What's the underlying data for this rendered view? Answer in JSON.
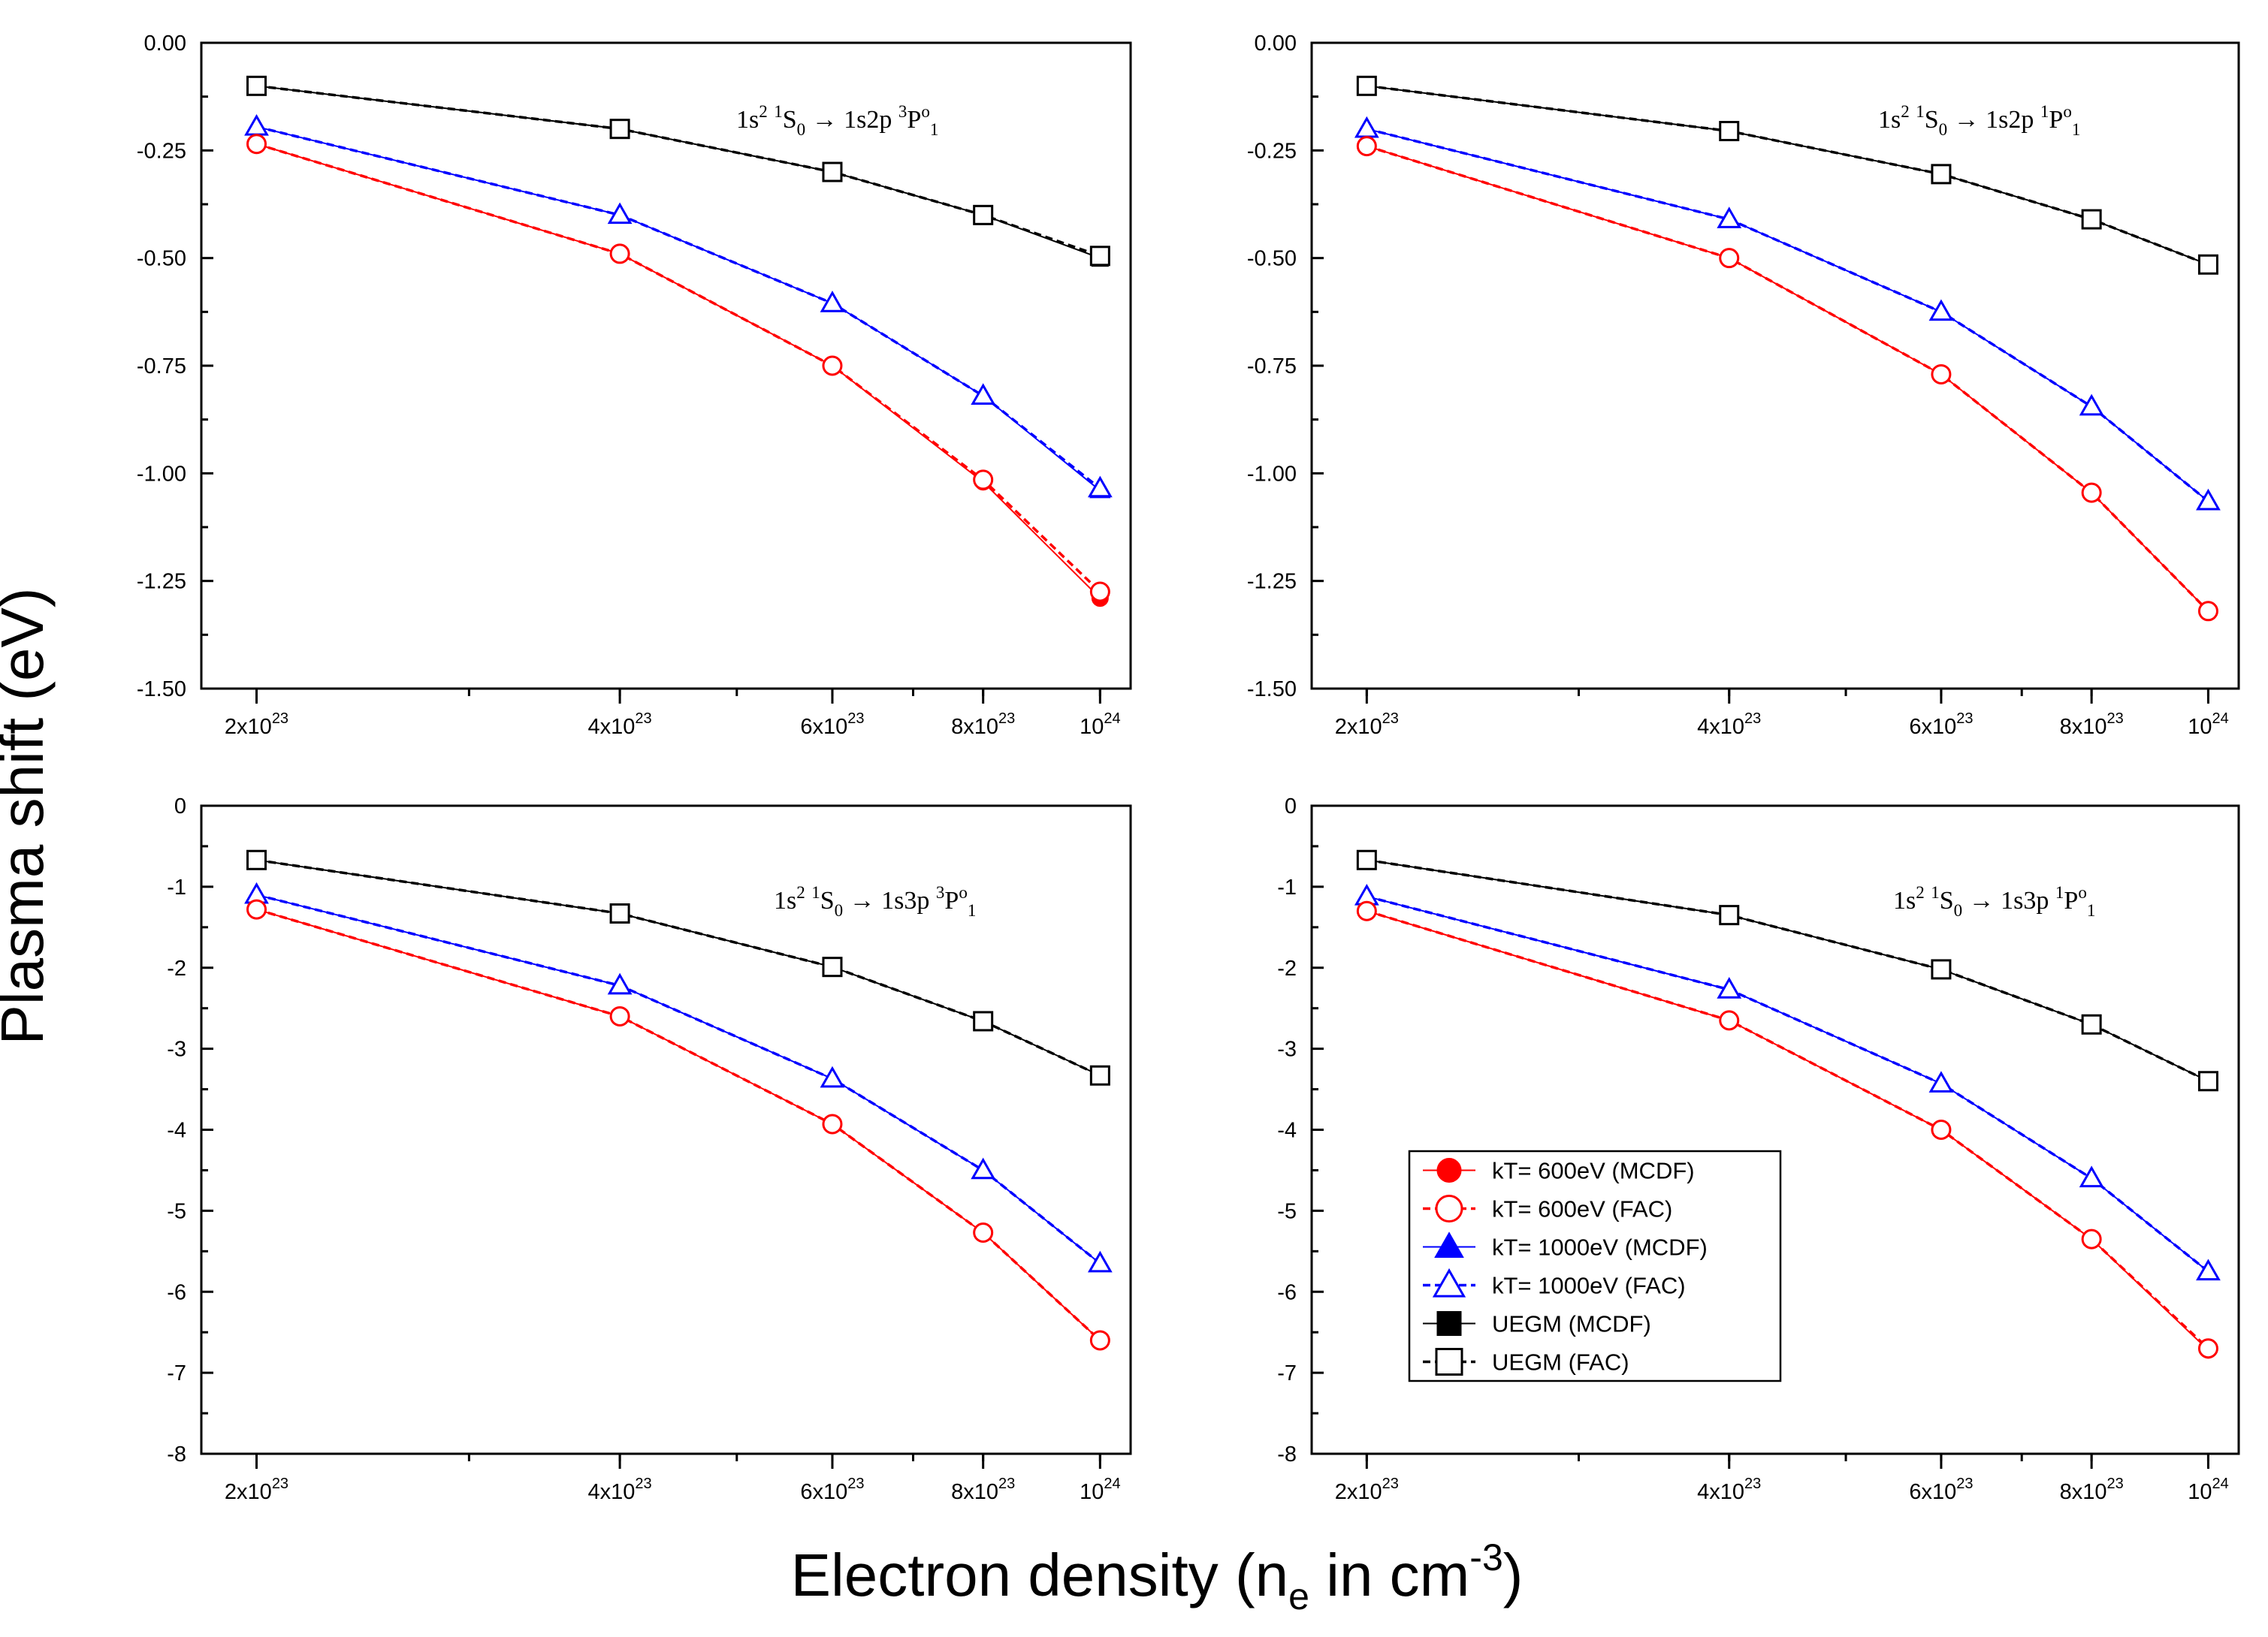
{
  "figure": {
    "ylabel": "Plasma shift (eV)",
    "xlabel": {
      "main": "Electron density (n",
      "sub": "e",
      "mid": " in cm",
      "sup": "-3",
      "end": ")"
    }
  },
  "legend": {
    "placement": "bottom-right panel, lower-left",
    "entries": [
      {
        "label": "kT= 600eV (MCDF)",
        "color": "#ff0000",
        "marker": "circle",
        "filled": true,
        "dash": false
      },
      {
        "label": "kT= 600eV (FAC)",
        "color": "#ff0000",
        "marker": "circle",
        "filled": false,
        "dash": true
      },
      {
        "label": "kT= 1000eV (MCDF)",
        "color": "#0000ff",
        "marker": "triangle",
        "filled": true,
        "dash": false
      },
      {
        "label": "kT= 1000eV (FAC)",
        "color": "#0000ff",
        "marker": "triangle",
        "filled": false,
        "dash": true
      },
      {
        "label": "UEGM (MCDF)",
        "color": "#000000",
        "marker": "square",
        "filled": true,
        "dash": false
      },
      {
        "label": "UEGM (FAC)",
        "color": "#000000",
        "marker": "square",
        "filled": false,
        "dash": true
      }
    ]
  },
  "chart_data": [
    {
      "type": "line",
      "annotation": {
        "parts": [
          {
            "t": "1s"
          },
          {
            "t": "2",
            "s": "sup"
          },
          {
            "t": " "
          },
          {
            "t": "1",
            "s": "sup"
          },
          {
            "t": "S"
          },
          {
            "t": "0",
            "s": "sub"
          },
          {
            "t": " → 1s2p "
          },
          {
            "t": "3",
            "s": "sup"
          },
          {
            "t": "P"
          },
          {
            "t": "o",
            "s": "sup"
          },
          {
            "t": "1",
            "s": "sub"
          }
        ]
      },
      "x_scale": "log",
      "xlim": [
        1.8e+23,
        1.06e+24
      ],
      "ylim": [
        -1.5,
        0
      ],
      "xticks": [
        {
          "value": 2e+23,
          "base": "2x10",
          "exp": "23"
        },
        {
          "value": 4e+23,
          "base": "4x10",
          "exp": "23"
        },
        {
          "value": 6e+23,
          "base": "6x10",
          "exp": "23"
        },
        {
          "value": 8e+23,
          "base": "8x10",
          "exp": "23"
        },
        {
          "value": 1e+24,
          "base": "10",
          "exp": "24"
        }
      ],
      "yticks": [
        {
          "value": 0,
          "label": "0.00"
        },
        {
          "value": -0.25,
          "label": "-0.25"
        },
        {
          "value": -0.5,
          "label": "-0.50"
        },
        {
          "value": -0.75,
          "label": "-0.75"
        },
        {
          "value": -1.0,
          "label": "-1.00"
        },
        {
          "value": -1.25,
          "label": "-1.25"
        },
        {
          "value": -1.5,
          "label": "-1.50"
        }
      ],
      "x": [
        2e+23,
        4e+23,
        6e+23,
        8e+23,
        1e+24
      ],
      "series": [
        {
          "name": "kT= 600eV (MCDF)",
          "values": [
            -0.235,
            -0.49,
            -0.75,
            -1.02,
            -1.29
          ]
        },
        {
          "name": "kT= 600eV (FAC)",
          "values": [
            -0.235,
            -0.49,
            -0.75,
            -1.015,
            -1.275
          ]
        },
        {
          "name": "kT= 1000eV (MCDF)",
          "values": [
            -0.195,
            -0.4,
            -0.605,
            -0.82,
            -1.04
          ]
        },
        {
          "name": "kT= 1000eV (FAC)",
          "values": [
            -0.195,
            -0.4,
            -0.605,
            -0.82,
            -1.035
          ]
        },
        {
          "name": "UEGM (MCDF)",
          "values": [
            -0.1,
            -0.2,
            -0.3,
            -0.4,
            -0.5
          ]
        },
        {
          "name": "UEGM (FAC)",
          "values": [
            -0.1,
            -0.2,
            -0.3,
            -0.4,
            -0.495
          ]
        }
      ]
    },
    {
      "type": "line",
      "annotation": {
        "parts": [
          {
            "t": "1s"
          },
          {
            "t": "2",
            "s": "sup"
          },
          {
            "t": " "
          },
          {
            "t": "1",
            "s": "sup"
          },
          {
            "t": "S"
          },
          {
            "t": "0",
            "s": "sub"
          },
          {
            "t": " → 1s2p "
          },
          {
            "t": "1",
            "s": "sup"
          },
          {
            "t": "P"
          },
          {
            "t": "o",
            "s": "sup"
          },
          {
            "t": "1",
            "s": "sub"
          }
        ]
      },
      "x_scale": "log",
      "xlim": [
        1.8e+23,
        1.06e+24
      ],
      "ylim": [
        -1.5,
        0
      ],
      "xticks": [
        {
          "value": 2e+23,
          "base": "2x10",
          "exp": "23"
        },
        {
          "value": 4e+23,
          "base": "4x10",
          "exp": "23"
        },
        {
          "value": 6e+23,
          "base": "6x10",
          "exp": "23"
        },
        {
          "value": 8e+23,
          "base": "8x10",
          "exp": "23"
        },
        {
          "value": 1e+24,
          "base": "10",
          "exp": "24"
        }
      ],
      "yticks": [
        {
          "value": 0,
          "label": "0.00"
        },
        {
          "value": -0.25,
          "label": "-0.25"
        },
        {
          "value": -0.5,
          "label": "-0.50"
        },
        {
          "value": -0.75,
          "label": "-0.75"
        },
        {
          "value": -1.0,
          "label": "-1.00"
        },
        {
          "value": -1.25,
          "label": "-1.25"
        },
        {
          "value": -1.5,
          "label": "-1.50"
        }
      ],
      "x": [
        2e+23,
        4e+23,
        6e+23,
        8e+23,
        1e+24
      ],
      "series": [
        {
          "name": "kT= 600eV (MCDF)",
          "values": [
            -0.24,
            -0.5,
            -0.77,
            -1.045,
            -1.32
          ]
        },
        {
          "name": "kT= 600eV (FAC)",
          "values": [
            -0.24,
            -0.5,
            -0.77,
            -1.045,
            -1.32
          ]
        },
        {
          "name": "kT= 1000eV (MCDF)",
          "values": [
            -0.2,
            -0.41,
            -0.625,
            -0.845,
            -1.065
          ]
        },
        {
          "name": "kT= 1000eV (FAC)",
          "values": [
            -0.2,
            -0.41,
            -0.625,
            -0.845,
            -1.065
          ]
        },
        {
          "name": "UEGM (MCDF)",
          "values": [
            -0.1,
            -0.205,
            -0.305,
            -0.41,
            -0.515
          ]
        },
        {
          "name": "UEGM (FAC)",
          "values": [
            -0.1,
            -0.205,
            -0.305,
            -0.41,
            -0.515
          ]
        }
      ]
    },
    {
      "type": "line",
      "annotation": {
        "parts": [
          {
            "t": "1s"
          },
          {
            "t": "2",
            "s": "sup"
          },
          {
            "t": " "
          },
          {
            "t": "1",
            "s": "sup"
          },
          {
            "t": "S"
          },
          {
            "t": "0",
            "s": "sub"
          },
          {
            "t": " → 1s3p "
          },
          {
            "t": "3",
            "s": "sup"
          },
          {
            "t": "P"
          },
          {
            "t": "o",
            "s": "sup"
          },
          {
            "t": "1",
            "s": "sub"
          }
        ]
      },
      "x_scale": "log",
      "xlim": [
        1.8e+23,
        1.06e+24
      ],
      "ylim": [
        -8,
        0
      ],
      "xticks": [
        {
          "value": 2e+23,
          "base": "2x10",
          "exp": "23"
        },
        {
          "value": 4e+23,
          "base": "4x10",
          "exp": "23"
        },
        {
          "value": 6e+23,
          "base": "6x10",
          "exp": "23"
        },
        {
          "value": 8e+23,
          "base": "8x10",
          "exp": "23"
        },
        {
          "value": 1e+24,
          "base": "10",
          "exp": "24"
        }
      ],
      "yticks": [
        {
          "value": 0,
          "label": "0"
        },
        {
          "value": -1,
          "label": "-1"
        },
        {
          "value": -2,
          "label": "-2"
        },
        {
          "value": -3,
          "label": "-3"
        },
        {
          "value": -4,
          "label": "-4"
        },
        {
          "value": -5,
          "label": "-5"
        },
        {
          "value": -6,
          "label": "-6"
        },
        {
          "value": -7,
          "label": "-7"
        },
        {
          "value": -8,
          "label": "-8"
        }
      ],
      "x": [
        2e+23,
        4e+23,
        6e+23,
        8e+23,
        1e+24
      ],
      "series": [
        {
          "name": "kT= 600eV (MCDF)",
          "values": [
            -1.28,
            -2.6,
            -3.93,
            -5.27,
            -6.6
          ]
        },
        {
          "name": "kT= 600eV (FAC)",
          "values": [
            -1.28,
            -2.6,
            -3.93,
            -5.27,
            -6.6
          ]
        },
        {
          "name": "kT= 1000eV (MCDF)",
          "values": [
            -1.1,
            -2.22,
            -3.37,
            -4.5,
            -5.65
          ]
        },
        {
          "name": "kT= 1000eV (FAC)",
          "values": [
            -1.1,
            -2.22,
            -3.37,
            -4.5,
            -5.65
          ]
        },
        {
          "name": "UEGM (MCDF)",
          "values": [
            -0.67,
            -1.33,
            -1.99,
            -2.66,
            -3.33
          ]
        },
        {
          "name": "UEGM (FAC)",
          "values": [
            -0.67,
            -1.33,
            -1.99,
            -2.66,
            -3.33
          ]
        }
      ]
    },
    {
      "type": "line",
      "annotation": {
        "parts": [
          {
            "t": "1s"
          },
          {
            "t": "2",
            "s": "sup"
          },
          {
            "t": " "
          },
          {
            "t": "1",
            "s": "sup"
          },
          {
            "t": "S"
          },
          {
            "t": "0",
            "s": "sub"
          },
          {
            "t": " → 1s3p "
          },
          {
            "t": "1",
            "s": "sup"
          },
          {
            "t": "P"
          },
          {
            "t": "o",
            "s": "sup"
          },
          {
            "t": "1",
            "s": "sub"
          }
        ]
      },
      "x_scale": "log",
      "xlim": [
        1.8e+23,
        1.06e+24
      ],
      "ylim": [
        -8,
        0
      ],
      "xticks": [
        {
          "value": 2e+23,
          "base": "2x10",
          "exp": "23"
        },
        {
          "value": 4e+23,
          "base": "4x10",
          "exp": "23"
        },
        {
          "value": 6e+23,
          "base": "6x10",
          "exp": "23"
        },
        {
          "value": 8e+23,
          "base": "8x10",
          "exp": "23"
        },
        {
          "value": 1e+24,
          "base": "10",
          "exp": "24"
        }
      ],
      "yticks": [
        {
          "value": 0,
          "label": "0"
        },
        {
          "value": -1,
          "label": "-1"
        },
        {
          "value": -2,
          "label": "-2"
        },
        {
          "value": -3,
          "label": "-3"
        },
        {
          "value": -4,
          "label": "-4"
        },
        {
          "value": -5,
          "label": "-5"
        },
        {
          "value": -6,
          "label": "-6"
        },
        {
          "value": -7,
          "label": "-7"
        },
        {
          "value": -8,
          "label": "-8"
        }
      ],
      "x": [
        2e+23,
        4e+23,
        6e+23,
        8e+23,
        1e+24
      ],
      "series": [
        {
          "name": "kT= 600eV (MCDF)",
          "values": [
            -1.3,
            -2.65,
            -4.0,
            -5.35,
            -6.72
          ]
        },
        {
          "name": "kT= 600eV (FAC)",
          "values": [
            -1.3,
            -2.65,
            -4.0,
            -5.35,
            -6.7
          ]
        },
        {
          "name": "kT= 1000eV (MCDF)",
          "values": [
            -1.12,
            -2.27,
            -3.43,
            -4.6,
            -5.75
          ]
        },
        {
          "name": "kT= 1000eV (FAC)",
          "values": [
            -1.12,
            -2.27,
            -3.43,
            -4.6,
            -5.75
          ]
        },
        {
          "name": "UEGM (MCDF)",
          "values": [
            -0.67,
            -1.35,
            -2.02,
            -2.7,
            -3.4
          ]
        },
        {
          "name": "UEGM (FAC)",
          "values": [
            -0.67,
            -1.35,
            -2.02,
            -2.7,
            -3.4
          ]
        }
      ]
    }
  ]
}
